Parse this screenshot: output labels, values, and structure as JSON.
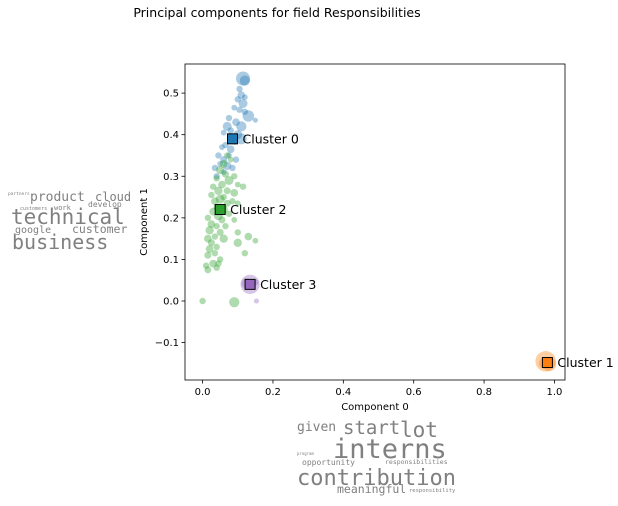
{
  "chart_data": {
    "type": "scatter",
    "title": "Principal components for field Responsibilities",
    "xlabel": "Component 0",
    "ylabel": "Component 1",
    "xlim": [
      -0.05,
      1.03
    ],
    "ylim": [
      -0.19,
      0.57
    ],
    "xticks": [
      0.0,
      0.2,
      0.4,
      0.6,
      0.8,
      1.0
    ],
    "yticks": [
      -0.1,
      0.0,
      0.1,
      0.2,
      0.3,
      0.4,
      0.5
    ],
    "xtick_labels": [
      "0.0",
      "0.2",
      "0.4",
      "0.6",
      "0.8",
      "1.0"
    ],
    "ytick_labels": [
      "−0.1",
      "0.0",
      "0.1",
      "0.2",
      "0.3",
      "0.4",
      "0.5"
    ],
    "grid": false,
    "colors": {
      "Cluster 0": "#1f77b4",
      "Cluster 1": "#ff7f0e",
      "Cluster 2": "#2ca02c",
      "Cluster 3": "#9467bd"
    },
    "series": [
      {
        "name": "Cluster 0",
        "centroid": [
          0.085,
          0.39
        ],
        "points": [
          [
            0.115,
            0.535,
            2.2
          ],
          [
            0.12,
            0.53,
            1.6
          ],
          [
            0.105,
            0.51,
            1.0
          ],
          [
            0.11,
            0.495,
            1.2
          ],
          [
            0.1,
            0.485,
            1.0
          ],
          [
            0.12,
            0.49,
            0.9
          ],
          [
            0.115,
            0.475,
            1.4
          ],
          [
            0.105,
            0.46,
            1.0
          ],
          [
            0.09,
            0.465,
            0.9
          ],
          [
            0.12,
            0.455,
            1.0
          ],
          [
            0.13,
            0.445,
            1.8
          ],
          [
            0.15,
            0.435,
            0.8
          ],
          [
            0.075,
            0.44,
            1.0
          ],
          [
            0.095,
            0.43,
            1.2
          ],
          [
            0.11,
            0.42,
            1.6
          ],
          [
            0.07,
            0.42,
            1.4
          ],
          [
            0.08,
            0.41,
            1.0
          ],
          [
            0.06,
            0.405,
            0.9
          ],
          [
            0.1,
            0.4,
            1.4
          ],
          [
            0.11,
            0.39,
            1.7
          ],
          [
            0.09,
            0.385,
            1.2
          ],
          [
            0.065,
            0.375,
            1.0
          ],
          [
            0.055,
            0.37,
            0.9
          ],
          [
            0.08,
            0.365,
            1.2
          ],
          [
            0.045,
            0.35,
            1.0
          ],
          [
            0.06,
            0.34,
            1.1
          ],
          [
            0.075,
            0.35,
            0.9
          ],
          [
            0.095,
            0.34,
            1.0
          ],
          [
            0.05,
            0.33,
            0.9
          ],
          [
            0.035,
            0.32,
            1.0
          ],
          [
            0.07,
            0.325,
            1.3
          ],
          [
            0.04,
            0.3,
            1.0
          ],
          [
            0.06,
            0.31,
            0.9
          ],
          [
            0.085,
            0.32,
            1.0
          ]
        ]
      },
      {
        "name": "Cluster 1",
        "centroid": [
          0.98,
          -0.148
        ],
        "points": [
          [
            0.975,
            -0.145,
            3.2
          ],
          [
            0.985,
            -0.152,
            2.2
          ],
          [
            0.97,
            -0.15,
            1.6
          ]
        ]
      },
      {
        "name": "Cluster 2",
        "centroid": [
          0.05,
          0.22
        ],
        "points": [
          [
            0.07,
            0.35,
            1.0
          ],
          [
            0.06,
            0.33,
            1.2
          ],
          [
            0.08,
            0.34,
            0.9
          ],
          [
            0.05,
            0.315,
            1.3
          ],
          [
            0.065,
            0.305,
            1.1
          ],
          [
            0.09,
            0.3,
            1.0
          ],
          [
            0.075,
            0.29,
            1.4
          ],
          [
            0.04,
            0.295,
            1.0
          ],
          [
            0.055,
            0.28,
            1.2
          ],
          [
            0.1,
            0.28,
            0.9
          ],
          [
            0.115,
            0.275,
            1.0
          ],
          [
            0.03,
            0.275,
            1.0
          ],
          [
            0.045,
            0.265,
            1.3
          ],
          [
            0.07,
            0.265,
            1.1
          ],
          [
            0.09,
            0.26,
            1.2
          ],
          [
            0.06,
            0.25,
            1.0
          ],
          [
            0.025,
            0.255,
            1.0
          ],
          [
            0.035,
            0.24,
            1.2
          ],
          [
            0.05,
            0.245,
            1.4
          ],
          [
            0.085,
            0.24,
            1.0
          ],
          [
            0.1,
            0.235,
            0.9
          ],
          [
            0.07,
            0.235,
            1.1
          ],
          [
            0.04,
            0.225,
            1.0
          ],
          [
            0.06,
            0.22,
            1.3
          ],
          [
            0.03,
            0.215,
            1.2
          ],
          [
            0.075,
            0.21,
            1.0
          ],
          [
            0.045,
            0.205,
            1.4
          ],
          [
            0.015,
            0.2,
            1.0
          ],
          [
            0.055,
            0.195,
            1.1
          ],
          [
            0.09,
            0.195,
            0.9
          ],
          [
            0.025,
            0.185,
            1.2
          ],
          [
            0.04,
            0.18,
            1.0
          ],
          [
            0.065,
            0.18,
            1.0
          ],
          [
            0.02,
            0.17,
            1.3
          ],
          [
            0.05,
            0.165,
            1.1
          ],
          [
            0.035,
            0.155,
            1.0
          ],
          [
            0.015,
            0.15,
            1.2
          ],
          [
            0.06,
            0.15,
            1.3
          ],
          [
            0.1,
            0.165,
            1.0
          ],
          [
            0.13,
            0.155,
            1.2
          ],
          [
            0.025,
            0.14,
            1.1
          ],
          [
            0.04,
            0.13,
            1.0
          ],
          [
            0.02,
            0.125,
            1.2
          ],
          [
            0.1,
            0.14,
            1.3
          ],
          [
            0.035,
            0.115,
            1.0
          ],
          [
            0.015,
            0.11,
            1.1
          ],
          [
            0.05,
            0.1,
            1.0
          ],
          [
            0.03,
            0.09,
            1.2
          ],
          [
            0.01,
            0.085,
            1.0
          ],
          [
            0.04,
            0.08,
            1.0
          ],
          [
            0.015,
            0.075,
            1.1
          ],
          [
            0.045,
            0.09,
            1.0
          ],
          [
            0.12,
            0.115,
            1.0
          ],
          [
            0.15,
            0.145,
            0.9
          ],
          [
            0.0,
            0.0,
            1.0
          ],
          [
            0.09,
            -0.003,
            1.6
          ]
        ]
      },
      {
        "name": "Cluster 3",
        "centroid": [
          0.135,
          0.04
        ],
        "points": [
          [
            0.135,
            0.04,
            3.0
          ],
          [
            0.125,
            0.042,
            1.6
          ],
          [
            0.15,
            0.045,
            1.0
          ],
          [
            0.153,
            0.0,
            0.8
          ]
        ]
      }
    ]
  },
  "word_clouds": [
    {
      "words": [
        "partners",
        "product",
        "cloud",
        "customers",
        "work",
        "develop",
        "technical",
        "google",
        "customer",
        "business"
      ]
    },
    {
      "words": [
        "given",
        "start",
        "lot",
        "program",
        "interns",
        "opportunity",
        "responsibilities",
        "contribution",
        "meaningful",
        "responsibility"
      ]
    }
  ]
}
